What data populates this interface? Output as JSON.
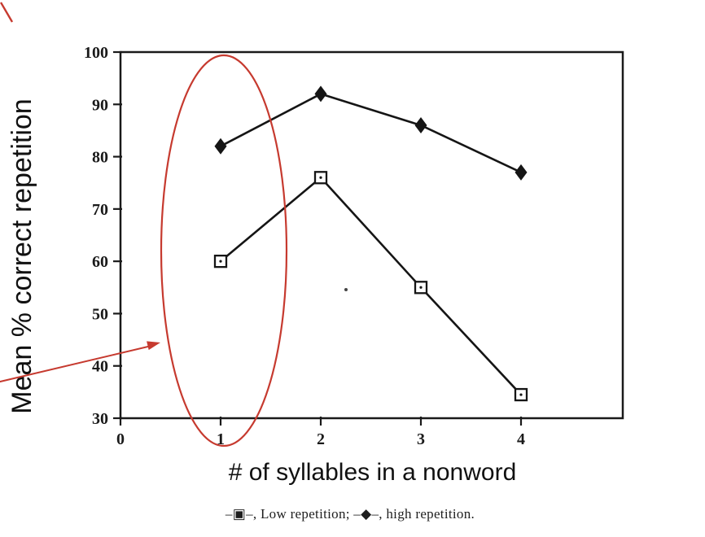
{
  "chart_data": {
    "type": "line",
    "title": "",
    "x": [
      1,
      2,
      3,
      4
    ],
    "x_ticks": [
      0,
      1,
      2,
      3,
      4
    ],
    "y_ticks": [
      100,
      90,
      80,
      70,
      60,
      50,
      40,
      30
    ],
    "xlim": [
      0,
      5
    ],
    "ylim": [
      30,
      100
    ],
    "grid": false,
    "xlabel": "# of syllables in a nonword",
    "ylabel": "Mean % correct repetition",
    "series": [
      {
        "name": "Low repetition",
        "marker": "open-square-dot",
        "values": [
          60,
          76,
          55,
          34.5
        ]
      },
      {
        "name": "high repetition",
        "marker": "filled-diamond",
        "values": [
          82,
          92,
          86,
          77
        ]
      }
    ],
    "legend_text": "–▣–, Low repetition; –◆–, high repetition.",
    "legend_position": "below-x-axis"
  },
  "annotations": {
    "color": "#c63a2f",
    "ellipse_note": "red ellipse circling the 1-syllable data points",
    "arrow_note": "red arrow pointing to the circled region"
  }
}
